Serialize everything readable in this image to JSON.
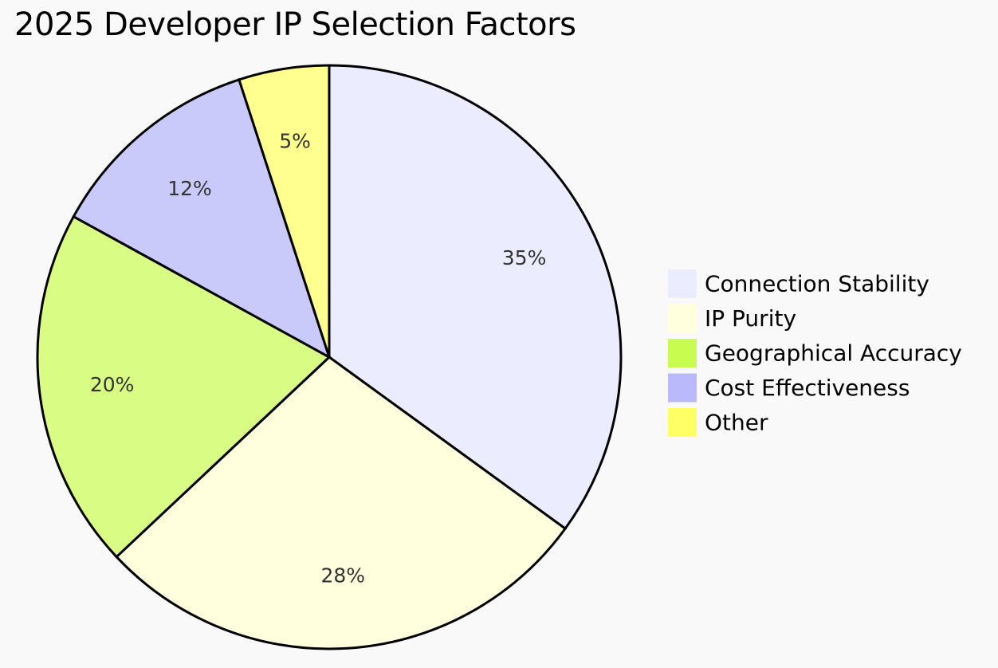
{
  "chart_data": {
    "type": "pie",
    "title": "2025 Developer IP Selection Factors",
    "slices": [
      {
        "label": "Connection Stability",
        "value": 35,
        "display": "35%",
        "color": "#ececff"
      },
      {
        "label": "IP Purity",
        "value": 28,
        "display": "28%",
        "color": "#ffffde"
      },
      {
        "label": "Geographical Accuracy",
        "value": 20,
        "display": "20%",
        "color": "#d9fc85"
      },
      {
        "label": "Cost Effectiveness",
        "value": 12,
        "display": "12%",
        "color": "#c9c9fa"
      },
      {
        "label": "Other",
        "value": 5,
        "display": "5%",
        "color": "#ffff8f"
      }
    ],
    "legend": {
      "placement": "right",
      "swatch_colors": [
        "#ececff",
        "#ffffde",
        "#c8fc4e",
        "#b9b9fb",
        "#ffff66"
      ]
    }
  }
}
